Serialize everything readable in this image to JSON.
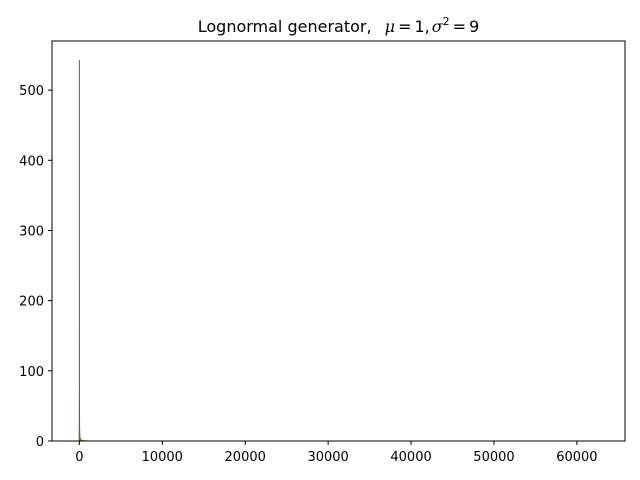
{
  "chart_data": {
    "type": "area",
    "title_prefix": "Lognormal generator,",
    "title_math": {
      "mu_symbol": "μ",
      "equals": "=",
      "mu_value": "1",
      "comma": ",",
      "sigma_symbol": "σ",
      "sigma_exponent": "2",
      "sigma_value": "9"
    },
    "xlabel": "",
    "ylabel": "",
    "xlim": [
      -3300,
      65800
    ],
    "ylim": [
      0,
      570
    ],
    "x_ticks": [
      0,
      10000,
      20000,
      30000,
      40000,
      50000,
      60000
    ],
    "x_tick_labels": [
      "0",
      "10000",
      "20000",
      "30000",
      "40000",
      "50000",
      "60000"
    ],
    "y_ticks": [
      0,
      100,
      200,
      300,
      400,
      500
    ],
    "y_tick_labels": [
      "0",
      "100",
      "200",
      "300",
      "400",
      "500"
    ],
    "grid": false,
    "fill_color": "#556b2f",
    "fill_opacity": 0.7,
    "x": [
      -40,
      -20,
      -8,
      -2,
      0,
      1,
      2,
      4,
      6,
      8,
      10,
      15,
      20,
      30,
      40,
      60,
      80,
      120,
      160,
      200,
      300,
      450,
      700,
      1000,
      2000,
      5000,
      20000,
      62600
    ],
    "values": [
      0,
      5,
      20,
      80,
      240,
      543,
      330,
      200,
      130,
      95,
      70,
      45,
      30,
      18,
      12,
      7,
      4.5,
      3,
      2,
      1.5,
      1,
      0.6,
      0.3,
      0.15,
      0.05,
      0.01,
      0,
      0
    ]
  }
}
